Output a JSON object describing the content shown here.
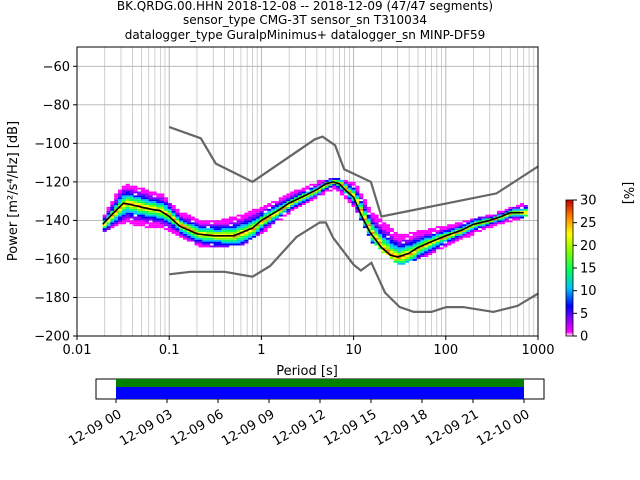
{
  "title_lines": [
    "BK.QRDG.00.HHN   2018-12-08 -- 2018-12-09  (47/47 segments)",
    "sensor_type CMG-3T sensor_sn T310034",
    "datalogger_type GuralpMinimus+ datalogger_sn MINP-DF59"
  ],
  "colors": {
    "median": "#000000",
    "noise_model": "#666666",
    "grid": "#b0b0b0",
    "coverage_top": "#008000",
    "coverage_bottom": "#0000ff"
  },
  "colorbar": {
    "label": "[%]",
    "ticks": [
      "0",
      "5",
      "10",
      "15",
      "20",
      "25",
      "30"
    ],
    "range": [
      0,
      30
    ]
  },
  "chart_data": [
    {
      "type": "heatmap",
      "xlabel": "Period [s]",
      "ylabel": "Power [m²/s⁴/Hz] [dB]",
      "xscale": "log",
      "xlim": [
        0.01,
        1000
      ],
      "ylim": [
        -200,
        -50
      ],
      "x_ticks": [
        {
          "value": 0.01,
          "label": "0.01"
        },
        {
          "value": 0.1,
          "label": "0.1"
        },
        {
          "value": 1,
          "label": "1"
        },
        {
          "value": 10,
          "label": "10"
        },
        {
          "value": 100,
          "label": "100"
        },
        {
          "value": 1000,
          "label": "1000"
        }
      ],
      "y_ticks": [
        -60,
        -80,
        -100,
        -120,
        -140,
        -160,
        -180,
        -200
      ],
      "grid": true,
      "median_curve": [
        [
          0.019,
          -142
        ],
        [
          0.025,
          -136
        ],
        [
          0.032,
          -131
        ],
        [
          0.04,
          -132
        ],
        [
          0.06,
          -134
        ],
        [
          0.08,
          -135
        ],
        [
          0.1,
          -138
        ],
        [
          0.13,
          -143
        ],
        [
          0.2,
          -147
        ],
        [
          0.3,
          -148
        ],
        [
          0.5,
          -148
        ],
        [
          0.8,
          -144
        ],
        [
          1.0,
          -140
        ],
        [
          1.5,
          -135
        ],
        [
          2.0,
          -131
        ],
        [
          3.0,
          -127
        ],
        [
          4.0,
          -124
        ],
        [
          5.0,
          -121
        ],
        [
          6.0,
          -120
        ],
        [
          7.0,
          -121
        ],
        [
          8.0,
          -124
        ],
        [
          10,
          -128
        ],
        [
          12,
          -137
        ],
        [
          15,
          -146
        ],
        [
          20,
          -154
        ],
        [
          25,
          -158
        ],
        [
          30,
          -159
        ],
        [
          40,
          -157
        ],
        [
          50,
          -154
        ],
        [
          70,
          -151
        ],
        [
          100,
          -148
        ],
        [
          150,
          -145
        ],
        [
          200,
          -142
        ],
        [
          300,
          -140
        ],
        [
          400,
          -138
        ],
        [
          500,
          -136
        ],
        [
          700,
          -136
        ]
      ],
      "pdf_density": [
        {
          "x": 0.019,
          "y": [
            -142
          ],
          "spread": [
            -146,
            -137
          ]
        },
        {
          "x": 0.03,
          "y": [
            -131
          ],
          "spread": [
            -141,
            -121
          ]
        },
        {
          "x": 0.05,
          "y": [
            -133
          ],
          "spread": [
            -143,
            -124
          ]
        },
        {
          "x": 0.08,
          "y": [
            -135
          ],
          "spread": [
            -144,
            -127
          ]
        },
        {
          "x": 0.12,
          "y": [
            -141
          ],
          "spread": [
            -148,
            -135
          ]
        },
        {
          "x": 0.2,
          "y": [
            -147
          ],
          "spread": [
            -153,
            -140
          ]
        },
        {
          "x": 0.35,
          "y": [
            -148
          ],
          "spread": [
            -154,
            -140
          ]
        },
        {
          "x": 0.6,
          "y": [
            -147
          ],
          "spread": [
            -152,
            -137
          ]
        },
        {
          "x": 1.0,
          "y": [
            -140
          ],
          "spread": [
            -146,
            -133
          ]
        },
        {
          "x": 2.0,
          "y": [
            -131
          ],
          "spread": [
            -135,
            -126
          ]
        },
        {
          "x": 4.0,
          "y": [
            -124
          ],
          "spread": [
            -127,
            -120
          ]
        },
        {
          "x": 6.0,
          "y": [
            -120
          ],
          "spread": [
            -123,
            -118
          ]
        },
        {
          "x": 10,
          "y": [
            -128
          ],
          "spread": [
            -134,
            -121
          ]
        },
        {
          "x": 15,
          "y": [
            -146
          ],
          "spread": [
            -151,
            -136
          ]
        },
        {
          "x": 30,
          "y": [
            -159
          ],
          "spread": [
            -163,
            -148
          ]
        },
        {
          "x": 60,
          "y": [
            -153
          ],
          "spread": [
            -158,
            -145
          ]
        },
        {
          "x": 120,
          "y": [
            -147
          ],
          "spread": [
            -151,
            -142
          ]
        },
        {
          "x": 300,
          "y": [
            -140
          ],
          "spread": [
            -143,
            -137
          ]
        },
        {
          "x": 700,
          "y": [
            -136
          ],
          "spread": [
            -138,
            -131
          ]
        }
      ],
      "nhnm": [
        [
          0.1,
          -91.5
        ],
        [
          0.22,
          -97.4
        ],
        [
          0.32,
          -110.5
        ],
        [
          0.8,
          -120
        ],
        [
          3.8,
          -97.9
        ],
        [
          4.6,
          -96.5
        ],
        [
          6.3,
          -101
        ],
        [
          7.9,
          -113.5
        ],
        [
          15.4,
          -120
        ],
        [
          20,
          -138
        ],
        [
          354.8,
          -126
        ],
        [
          1000,
          -112
        ]
      ],
      "nlnm": [
        [
          0.1,
          -168
        ],
        [
          0.17,
          -166.7
        ],
        [
          0.4,
          -166.7
        ],
        [
          0.8,
          -169.2
        ],
        [
          1.24,
          -163.7
        ],
        [
          2.4,
          -148.6
        ],
        [
          4.3,
          -141.1
        ],
        [
          5.0,
          -141.1
        ],
        [
          6.0,
          -149
        ],
        [
          10,
          -163
        ],
        [
          12,
          -166
        ],
        [
          15.6,
          -162
        ],
        [
          21.9,
          -177.5
        ],
        [
          31.6,
          -185
        ],
        [
          45,
          -187.5
        ],
        [
          70,
          -187.5
        ],
        [
          101,
          -185
        ],
        [
          154,
          -185
        ],
        [
          328,
          -187.5
        ],
        [
          600,
          -184.4
        ],
        [
          1000,
          -178
        ]
      ]
    },
    {
      "type": "bar",
      "title": "",
      "x_ticks": [
        "12-09 00",
        "12-09 03",
        "12-09 06",
        "12-09 09",
        "12-09 12",
        "12-09 15",
        "12-09 18",
        "12-09 21",
        "12-10 00"
      ],
      "series": [
        {
          "values": [
            1
          ]
        },
        {
          "values": [
            1
          ]
        }
      ]
    }
  ]
}
